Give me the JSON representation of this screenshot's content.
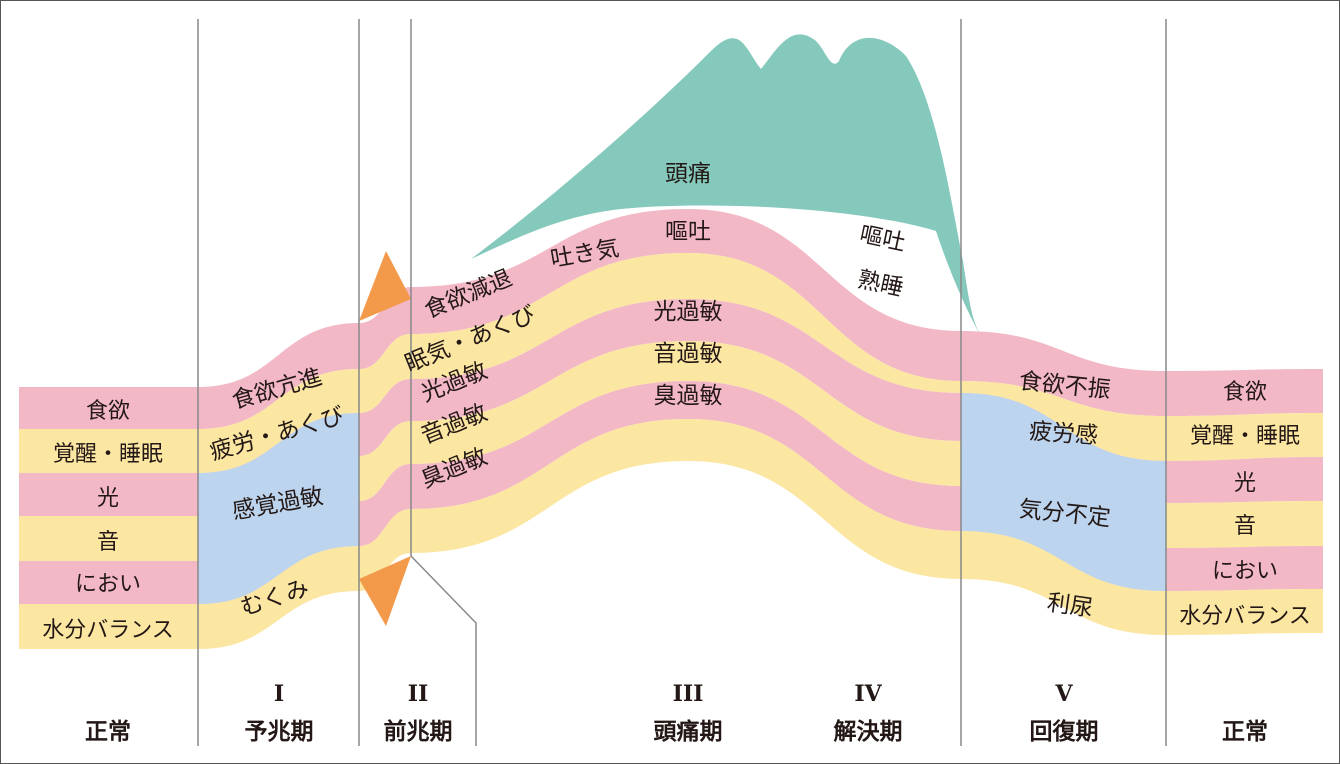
{
  "colors": {
    "pink": "#F2B8C6",
    "yellow": "#FBE6A2",
    "blue": "#BCD4EE",
    "teal": "#85C9BD",
    "orange": "#F2994A",
    "line": "#888888"
  },
  "bands_start": [
    "食欲",
    "覚醒・睡眠",
    "光",
    "音",
    "におい",
    "水分バランス"
  ],
  "bands_end": [
    "食欲",
    "覚醒・睡眠",
    "光",
    "音",
    "におい",
    "水分バランス"
  ],
  "prodrome_labels": {
    "appetite": "食欲亢進",
    "fatigue": "疲労・あくび",
    "sensory": "感覚過敏",
    "swelling": "むくみ"
  },
  "aura_labels": {
    "appetite": "食欲減退",
    "drowsy": "眠気・あくび",
    "light": "光過敏",
    "sound": "音過敏",
    "smell": "臭過敏"
  },
  "headache_labels": {
    "headache": "頭痛",
    "nausea": "吐き気",
    "vomit": "嘔吐",
    "light": "光過敏",
    "sound": "音過敏",
    "smell": "臭過敏"
  },
  "resolution_labels": {
    "vomit": "嘔吐",
    "sleep": "熟睡"
  },
  "recovery_labels": {
    "appetite": "食欲不振",
    "fatigue": "疲労感",
    "mood": "気分不定",
    "urination": "利尿"
  },
  "phases": [
    {
      "roman": "",
      "name": "正常"
    },
    {
      "roman": "I",
      "name": "予兆期"
    },
    {
      "roman": "II",
      "name": "前兆期"
    },
    {
      "roman": "III",
      "name": "頭痛期"
    },
    {
      "roman": "IV",
      "name": "解決期"
    },
    {
      "roman": "V",
      "name": "回復期"
    },
    {
      "roman": "",
      "name": "正常"
    }
  ]
}
